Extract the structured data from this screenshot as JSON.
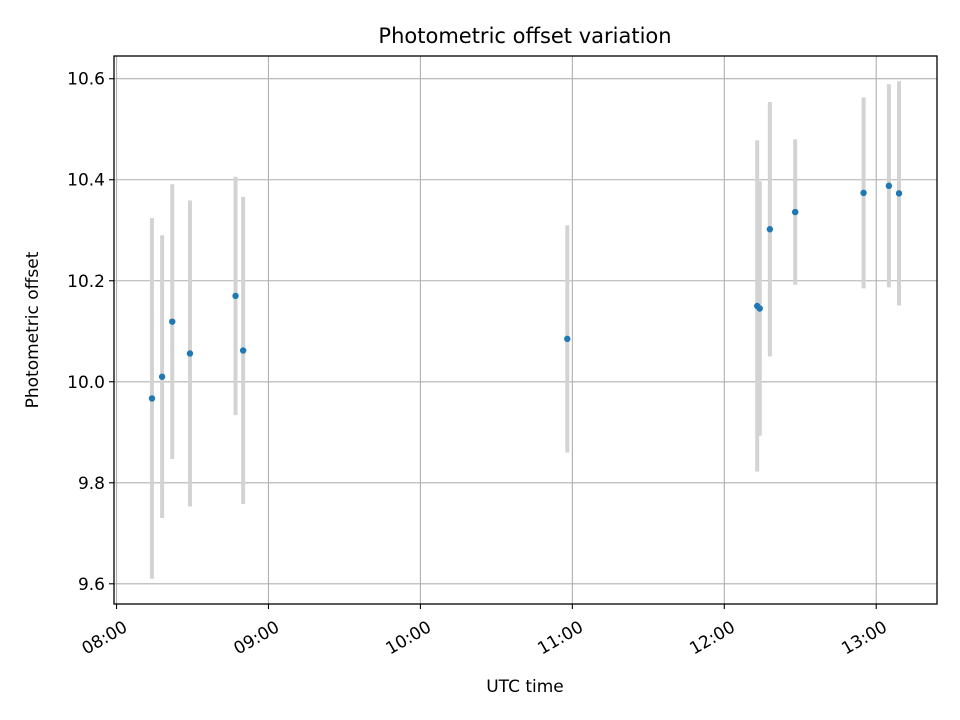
{
  "chart_data": {
    "type": "scatter",
    "title": "Photometric offset variation",
    "xlabel": "UTC time",
    "ylabel": "Photometric offset",
    "xlim": [
      "07:59",
      "13:24"
    ],
    "ylim": [
      9.56,
      10.645
    ],
    "x_ticks": [
      "08:00",
      "09:00",
      "10:00",
      "11:00",
      "12:00",
      "13:00"
    ],
    "y_ticks": [
      "9.6",
      "9.8",
      "10.0",
      "10.2",
      "10.4",
      "10.6"
    ],
    "grid": true,
    "colors": {
      "point": "#1f77b4",
      "errorbar": "#d3d3d3",
      "grid": "#b0b0b0"
    },
    "series": [
      {
        "points": [
          {
            "x": "08:14",
            "y": 9.967,
            "yerr": 0.357
          },
          {
            "x": "08:18",
            "y": 10.01,
            "yerr": 0.28
          },
          {
            "x": "08:22",
            "y": 10.119,
            "yerr": 0.272
          },
          {
            "x": "08:29",
            "y": 10.056,
            "yerr": 0.303
          },
          {
            "x": "08:47",
            "y": 10.17,
            "yerr": 0.236
          },
          {
            "x": "08:50",
            "y": 10.062,
            "yerr": 0.304
          },
          {
            "x": "10:58",
            "y": 10.085,
            "yerr": 0.225
          },
          {
            "x": "12:13",
            "y": 10.15,
            "yerr": 0.328
          },
          {
            "x": "12:14",
            "y": 10.145,
            "yerr": 0.252
          },
          {
            "x": "12:18",
            "y": 10.302,
            "yerr": 0.252
          },
          {
            "x": "12:28",
            "y": 10.336,
            "yerr": 0.144
          },
          {
            "x": "12:55",
            "y": 10.374,
            "yerr": 0.189
          },
          {
            "x": "13:05",
            "y": 10.388,
            "yerr": 0.201
          },
          {
            "x": "13:09",
            "y": 10.373,
            "yerr": 0.222
          }
        ]
      }
    ]
  }
}
